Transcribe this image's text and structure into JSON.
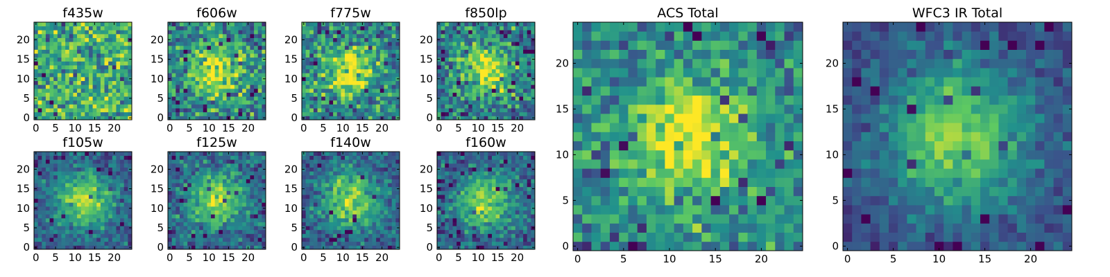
{
  "figure": {
    "colormap": "viridis",
    "colormap_stops": [
      "#440154",
      "#3b528b",
      "#21918c",
      "#5ec962",
      "#fde725"
    ],
    "background": "#ffffff"
  },
  "chart_data": [
    {
      "type": "heatmap",
      "title": "f435w",
      "grid": [
        25,
        25
      ],
      "xlim": [
        0,
        24
      ],
      "ylim": [
        0,
        24
      ],
      "xticks": [
        "0",
        "5",
        "10",
        "15",
        "20"
      ],
      "yticks": [
        "0",
        "5",
        "10",
        "15",
        "20"
      ],
      "peak": [
        12,
        12
      ],
      "source_extent": 0,
      "noise": 0.55,
      "bias": 0.62,
      "seed": 11
    },
    {
      "type": "heatmap",
      "title": "f606w",
      "grid": [
        25,
        25
      ],
      "xlim": [
        0,
        24
      ],
      "ylim": [
        0,
        24
      ],
      "xticks": [
        "0",
        "5",
        "10",
        "15",
        "20"
      ],
      "yticks": [
        "0",
        "5",
        "10",
        "15",
        "20"
      ],
      "peak": [
        12,
        12
      ],
      "source_extent": 4.5,
      "noise": 0.5,
      "bias": 0.45,
      "seed": 23
    },
    {
      "type": "heatmap",
      "title": "f775w",
      "grid": [
        25,
        25
      ],
      "xlim": [
        0,
        24
      ],
      "ylim": [
        0,
        24
      ],
      "xticks": [
        "0",
        "5",
        "10",
        "15",
        "20"
      ],
      "yticks": [
        "0",
        "5",
        "10",
        "15",
        "20"
      ],
      "peak": [
        12,
        12
      ],
      "source_extent": 4.5,
      "noise": 0.5,
      "bias": 0.45,
      "seed": 37
    },
    {
      "type": "heatmap",
      "title": "f850lp",
      "grid": [
        25,
        25
      ],
      "xlim": [
        0,
        24
      ],
      "ylim": [
        0,
        24
      ],
      "xticks": [
        "0",
        "5",
        "10",
        "15",
        "20"
      ],
      "yticks": [
        "0",
        "5",
        "10",
        "15",
        "20"
      ],
      "peak": [
        12,
        12
      ],
      "source_extent": 4.5,
      "noise": 0.5,
      "bias": 0.4,
      "seed": 41
    },
    {
      "type": "heatmap",
      "title": "f105w",
      "grid": [
        25,
        25
      ],
      "xlim": [
        0,
        24
      ],
      "ylim": [
        0,
        24
      ],
      "xticks": [
        "0",
        "5",
        "10",
        "15",
        "20"
      ],
      "yticks": [
        "0",
        "5",
        "10",
        "15",
        "20"
      ],
      "peak": [
        12,
        12
      ],
      "source_extent": 5,
      "noise": 0.3,
      "bias": 0.3,
      "seed": 53
    },
    {
      "type": "heatmap",
      "title": "f125w",
      "grid": [
        25,
        25
      ],
      "xlim": [
        0,
        24
      ],
      "ylim": [
        0,
        24
      ],
      "xticks": [
        "0",
        "5",
        "10",
        "15",
        "20"
      ],
      "yticks": [
        "0",
        "5",
        "10",
        "15",
        "20"
      ],
      "peak": [
        12,
        12
      ],
      "source_extent": 5,
      "noise": 0.35,
      "bias": 0.32,
      "seed": 67
    },
    {
      "type": "heatmap",
      "title": "f140w",
      "grid": [
        25,
        25
      ],
      "xlim": [
        0,
        24
      ],
      "ylim": [
        0,
        24
      ],
      "xticks": [
        "0",
        "5",
        "10",
        "15",
        "20"
      ],
      "yticks": [
        "0",
        "5",
        "10",
        "15",
        "20"
      ],
      "peak": [
        12,
        12
      ],
      "source_extent": 5,
      "noise": 0.32,
      "bias": 0.3,
      "seed": 71
    },
    {
      "type": "heatmap",
      "title": "f160w",
      "grid": [
        25,
        25
      ],
      "xlim": [
        0,
        24
      ],
      "ylim": [
        0,
        24
      ],
      "xticks": [
        "0",
        "5",
        "10",
        "15",
        "20"
      ],
      "yticks": [
        "0",
        "5",
        "10",
        "15",
        "20"
      ],
      "peak": [
        12,
        12
      ],
      "source_extent": 5,
      "noise": 0.35,
      "bias": 0.3,
      "seed": 83
    },
    {
      "type": "heatmap",
      "title": "ACS Total",
      "grid": [
        25,
        25
      ],
      "xlim": [
        0,
        24
      ],
      "ylim": [
        0,
        24
      ],
      "xticks": [
        "0",
        "5",
        "10",
        "15",
        "20"
      ],
      "yticks": [
        "0",
        "5",
        "10",
        "15",
        "20"
      ],
      "peak": [
        12,
        12
      ],
      "source_extent": 4.5,
      "noise": 0.42,
      "bias": 0.45,
      "seed": 97
    },
    {
      "type": "heatmap",
      "title": "WFC3 IR Total",
      "grid": [
        25,
        25
      ],
      "xlim": [
        0,
        24
      ],
      "ylim": [
        0,
        24
      ],
      "xticks": [
        "0",
        "5",
        "10",
        "15",
        "20"
      ],
      "yticks": [
        "0",
        "5",
        "10",
        "15",
        "20"
      ],
      "peak": [
        12,
        12
      ],
      "source_extent": 5.5,
      "noise": 0.22,
      "bias": 0.25,
      "seed": 101
    }
  ]
}
